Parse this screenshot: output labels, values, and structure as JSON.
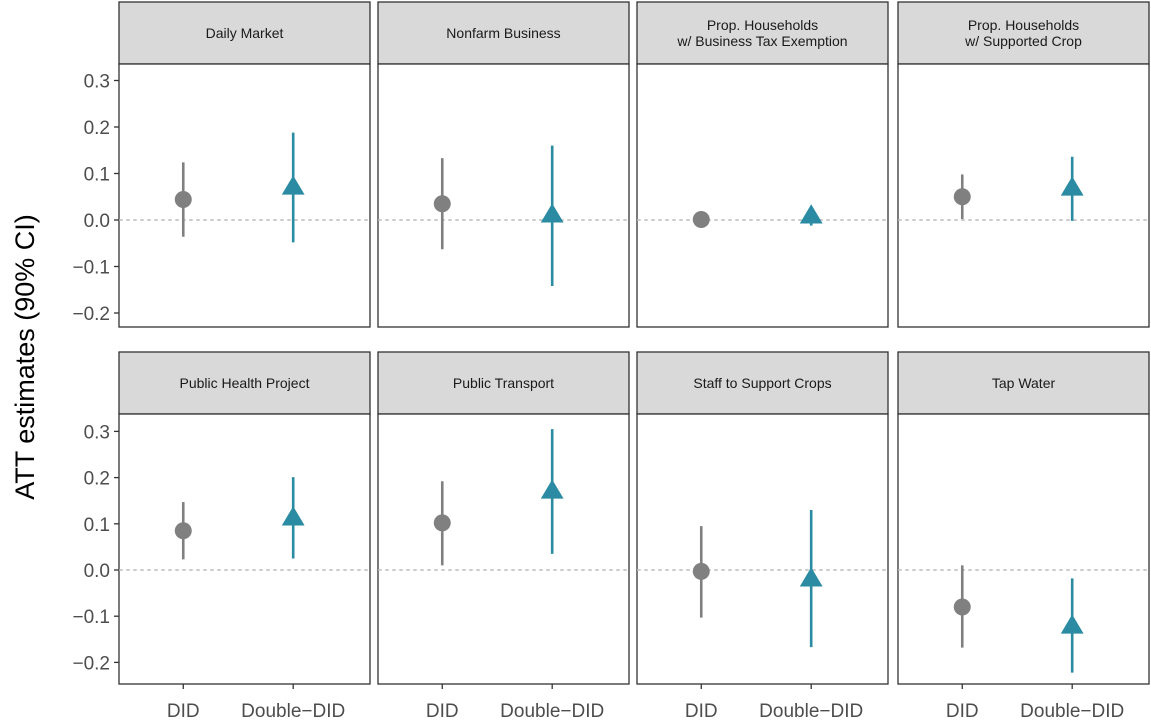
{
  "chart_data": {
    "type": "pointrange",
    "ylabel": "ATT estimates (90% CI)",
    "xlabel": "",
    "ylim": [
      -0.25,
      0.34
    ],
    "y_ticks": [
      0.3,
      0.2,
      0.1,
      0.0,
      -0.1,
      -0.2
    ],
    "y_tick_labels": [
      "0.3",
      "0.2",
      "0.1",
      "0.0",
      "−0.1",
      "−0.2"
    ],
    "categories": [
      "DID",
      "Double−DID"
    ],
    "reference_line": 0,
    "grid": false,
    "colors": {
      "DID": "#808080",
      "Double-DID": "#2a8ba3",
      "reference": "#cccccc",
      "strip": "#d9d9d9",
      "panel_border": "#333333"
    },
    "markers": {
      "DID": "circle",
      "Double-DID": "triangle"
    },
    "facets": [
      {
        "title": [
          "Daily Market"
        ],
        "estimates": [
          {
            "method": "DID",
            "estimate": 0.044,
            "lower": -0.036,
            "upper": 0.124
          },
          {
            "method": "Double-DID",
            "estimate": 0.07,
            "lower": -0.048,
            "upper": 0.188
          }
        ]
      },
      {
        "title": [
          "Nonfarm Business"
        ],
        "estimates": [
          {
            "method": "DID",
            "estimate": 0.035,
            "lower": -0.063,
            "upper": 0.133
          },
          {
            "method": "Double-DID",
            "estimate": 0.01,
            "lower": -0.142,
            "upper": 0.16
          }
        ]
      },
      {
        "title": [
          "Prop. Households",
          "w/ Business Tax Exemption"
        ],
        "estimates": [
          {
            "method": "DID",
            "estimate": 0.001,
            "lower": 0.0,
            "upper": 0.002
          },
          {
            "method": "Double-DID",
            "estimate": 0.008,
            "lower": -0.012,
            "upper": 0.018
          }
        ]
      },
      {
        "title": [
          "Prop. Households",
          "w/ Supported Crop"
        ],
        "estimates": [
          {
            "method": "DID",
            "estimate": 0.05,
            "lower": 0.002,
            "upper": 0.098
          },
          {
            "method": "Double-DID",
            "estimate": 0.068,
            "lower": -0.002,
            "upper": 0.136
          }
        ]
      },
      {
        "title": [
          "Public Health Project"
        ],
        "estimates": [
          {
            "method": "DID",
            "estimate": 0.085,
            "lower": 0.023,
            "upper": 0.147
          },
          {
            "method": "Double-DID",
            "estimate": 0.112,
            "lower": 0.025,
            "upper": 0.201
          }
        ]
      },
      {
        "title": [
          "Public Transport"
        ],
        "estimates": [
          {
            "method": "DID",
            "estimate": 0.102,
            "lower": 0.01,
            "upper": 0.192
          },
          {
            "method": "Double-DID",
            "estimate": 0.17,
            "lower": 0.035,
            "upper": 0.305
          }
        ]
      },
      {
        "title": [
          "Staff to Support Crops"
        ],
        "estimates": [
          {
            "method": "DID",
            "estimate": -0.003,
            "lower": -0.103,
            "upper": 0.095
          },
          {
            "method": "Double-DID",
            "estimate": -0.02,
            "lower": -0.167,
            "upper": 0.13
          }
        ]
      },
      {
        "title": [
          "Tap Water"
        ],
        "estimates": [
          {
            "method": "DID",
            "estimate": -0.08,
            "lower": -0.168,
            "upper": 0.01
          },
          {
            "method": "Double-DID",
            "estimate": -0.122,
            "lower": -0.222,
            "upper": -0.018
          }
        ]
      }
    ]
  }
}
